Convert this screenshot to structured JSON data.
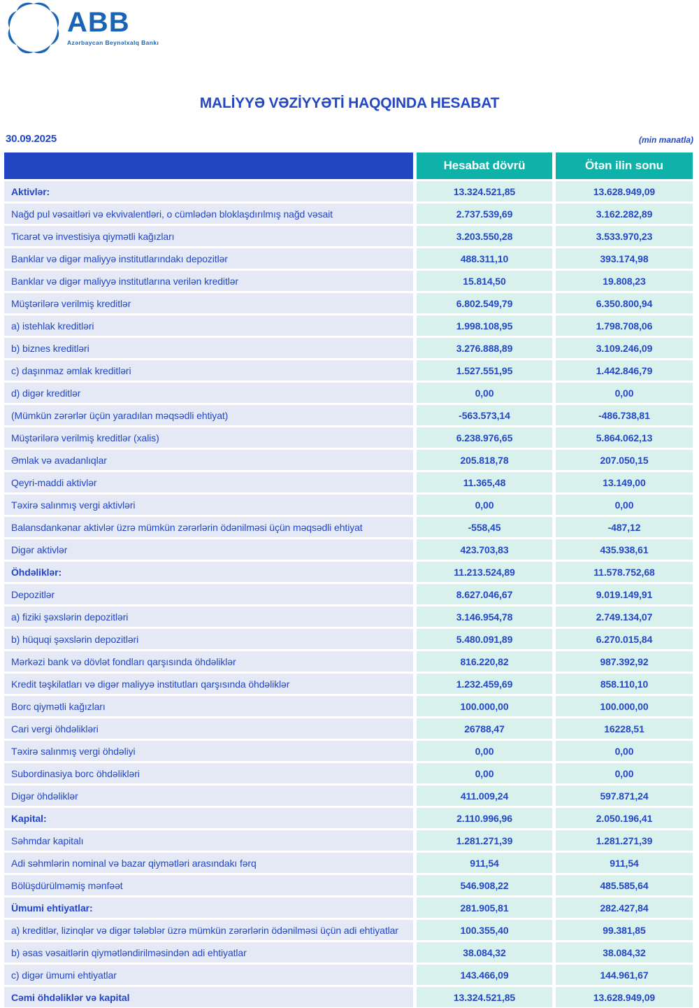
{
  "logo": {
    "brand": "ABB",
    "subtitle": "Azərbaycan Beynəlxalq Bankı"
  },
  "title": "MALİYYƏ VƏZİYYƏTİ HAQQINDA HESABAT",
  "date": "30.09.2025",
  "unit_note": "(min manatla)",
  "colors": {
    "brand-blue": "#1A64B6",
    "royal-blue": "#2347C5",
    "header-blue": "#2245C4",
    "teal": "#0FB2A8",
    "label-bg": "#E4E9F5",
    "value-bg": "#D9F1ED"
  },
  "table": {
    "columns": [
      "",
      "Hesabat dövrü",
      "Ötən ilin sonu"
    ],
    "rows": [
      {
        "label": "Aktivlər:",
        "current": "13.324.521,85",
        "previous": "13.628.949,09",
        "bold": true
      },
      {
        "label": "Nağd pul vəsaitləri və  ekvivalentləri, o cümlədən bloklaşdırılmış nağd vəsait",
        "current": "2.737.539,69",
        "previous": "3.162.282,89",
        "bold": false
      },
      {
        "label": "Ticarət və investisiya qiymətli kağızları",
        "current": "3.203.550,28",
        "previous": "3.533.970,23",
        "bold": false
      },
      {
        "label": "Banklar və digər maliyyə institutlarındakı depozitlər",
        "current": "488.311,10",
        "previous": "393.174,98",
        "bold": false
      },
      {
        "label": "Banklar və digər maliyyə institutlarına verilən kreditlər",
        "current": "15.814,50",
        "previous": "19.808,23",
        "bold": false
      },
      {
        "label": "Müştərilərə verilmiş kreditlər",
        "current": "6.802.549,79",
        "previous": "6.350.800,94",
        "bold": false
      },
      {
        "label": "a) istehlak kreditləri",
        "current": "1.998.108,95",
        "previous": "1.798.708,06",
        "bold": false
      },
      {
        "label": "b) biznes kreditləri",
        "current": "3.276.888,89",
        "previous": "3.109.246,09",
        "bold": false
      },
      {
        "label": "c) daşınmaz əmlak kreditləri",
        "current": "1.527.551,95",
        "previous": "1.442.846,79",
        "bold": false
      },
      {
        "label": "d) digər kreditlər",
        "current": "0,00",
        "previous": "0,00",
        "bold": false
      },
      {
        "label": "(Mümkün zərərlər üçün yaradılan məqsədli ehtiyat)",
        "current": "-563.573,14",
        "previous": "-486.738,81",
        "bold": false
      },
      {
        "label": "Müştərilərə verilmiş kreditlər (xalis)",
        "current": "6.238.976,65",
        "previous": "5.864.062,13",
        "bold": false
      },
      {
        "label": "Əmlak və avadanlıqlar",
        "current": "205.818,78",
        "previous": "207.050,15",
        "bold": false
      },
      {
        "label": "Qeyri-maddi aktivlər",
        "current": "11.365,48",
        "previous": "13.149,00",
        "bold": false
      },
      {
        "label": "Təxirə salınmış vergi aktivləri",
        "current": "0,00",
        "previous": "0,00",
        "bold": false
      },
      {
        "label": "Balansdankənar aktivlər üzrə mümkün zərərlərin ödənilməsi üçün məqsədli ehtiyat",
        "current": "-558,45",
        "previous": "-487,12",
        "bold": false
      },
      {
        "label": "Digər aktivlər",
        "current": "423.703,83",
        "previous": "435.938,61",
        "bold": false
      },
      {
        "label": "Öhdəliklər:",
        "current": "11.213.524,89",
        "previous": "11.578.752,68",
        "bold": true
      },
      {
        "label": "Depozitlər",
        "current": "8.627.046,67",
        "previous": "9.019.149,91",
        "bold": false
      },
      {
        "label": "a) fiziki şəxslərin depozitləri",
        "current": "3.146.954,78",
        "previous": "2.749.134,07",
        "bold": false
      },
      {
        "label": "b) hüquqi şəxslərin depozitləri",
        "current": "5.480.091,89",
        "previous": "6.270.015,84",
        "bold": false
      },
      {
        "label": "Mərkəzi bank və dövlət fondları qarşısında öhdəliklər",
        "current": "816.220,82",
        "previous": "987.392,92",
        "bold": false
      },
      {
        "label": "Kredit təşkilatları və digər maliyyə institutları qarşısında öhdəliklər",
        "current": "1.232.459,69",
        "previous": "858.110,10",
        "bold": false
      },
      {
        "label": "Borc qiymətli kağızları",
        "current": "100.000,00",
        "previous": "100.000,00",
        "bold": false
      },
      {
        "label": "Cari vergi öhdəlikləri",
        "current": "26788,47",
        "previous": "16228,51",
        "bold": false
      },
      {
        "label": "Təxirə salınmış vergi öhdəliyi",
        "current": "0,00",
        "previous": "0,00",
        "bold": false
      },
      {
        "label": "Subordinasiya borc öhdəlikləri",
        "current": "0,00",
        "previous": "0,00",
        "bold": false
      },
      {
        "label": "Digər öhdəliklər",
        "current": "411.009,24",
        "previous": "597.871,24",
        "bold": false
      },
      {
        "label": "Kapital:",
        "current": "2.110.996,96",
        "previous": "2.050.196,41",
        "bold": true
      },
      {
        "label": "Səhmdar kapitalı",
        "current": "1.281.271,39",
        "previous": "1.281.271,39",
        "bold": false
      },
      {
        "label": "Adi səhmlərin nominal və bazar qiymətləri arasındakı fərq",
        "current": "911,54",
        "previous": "911,54",
        "bold": false
      },
      {
        "label": "Bölüşdürülməmiş mənfəət",
        "current": "546.908,22",
        "previous": "485.585,64",
        "bold": false
      },
      {
        "label": "Ümumi ehtiyatlar:",
        "current": "281.905,81",
        "previous": "282.427,84",
        "bold": true
      },
      {
        "label": "a) kreditlər, lizinqlər və digər tələblər üzrə mümkün zərərlərin ödənilməsi üçün adi ehtiyatlar",
        "current": "100.355,40",
        "previous": "99.381,85",
        "bold": false
      },
      {
        "label": "b) əsas vəsaitlərin qiymətləndirilməsindən adi ehtiyatlar",
        "current": "38.084,32",
        "previous": "38.084,32",
        "bold": false
      },
      {
        "label": "c) digər ümumi ehtiyatlar",
        "current": "143.466,09",
        "previous": "144.961,67",
        "bold": false
      },
      {
        "label": "Cəmi öhdəliklər və kapital",
        "current": "13.324.521,85",
        "previous": "13.628.949,09",
        "bold": true
      }
    ]
  }
}
